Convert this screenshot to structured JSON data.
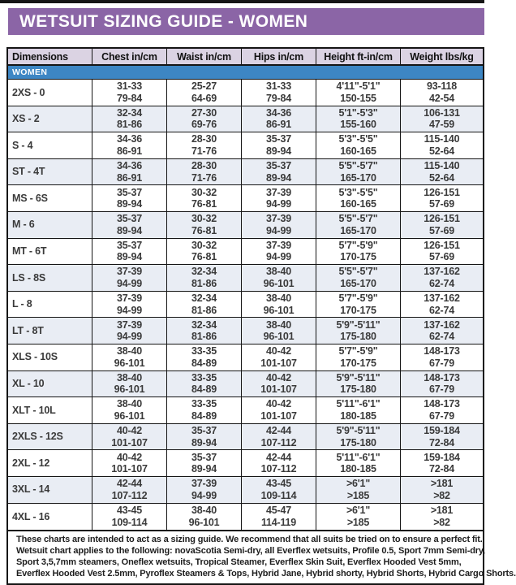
{
  "title": "WETSUIT SIZING GUIDE - WOMEN",
  "colors": {
    "purple": "#8b65a6",
    "lavender": "#dbd3e3",
    "blue": "#3d86c4",
    "row_alt": "#e9edf4",
    "border": "#151515"
  },
  "table": {
    "section_label": "WOMEN",
    "columns": [
      "Dimensions",
      "Chest in/cm",
      "Waist in/cm",
      "Hips in/cm",
      "Height ft-in/cm",
      "Weight lbs/kg"
    ],
    "rows": [
      {
        "size": "2XS - 0",
        "chest": [
          "31-33",
          "79-84"
        ],
        "waist": [
          "25-27",
          "64-69"
        ],
        "hips": [
          "31-33",
          "79-84"
        ],
        "height": [
          "4'11\"-5'1\"",
          "150-155"
        ],
        "weight": [
          "93-118",
          "42-54"
        ]
      },
      {
        "size": "XS - 2",
        "chest": [
          "32-34",
          "81-86"
        ],
        "waist": [
          "27-30",
          "69-76"
        ],
        "hips": [
          "34-36",
          "86-91"
        ],
        "height": [
          "5'1\"-5'3\"",
          "155-160"
        ],
        "weight": [
          "106-131",
          "47-59"
        ]
      },
      {
        "size": "S - 4",
        "chest": [
          "34-36",
          "86-91"
        ],
        "waist": [
          "28-30",
          "71-76"
        ],
        "hips": [
          "35-37",
          "89-94"
        ],
        "height": [
          "5'3\"-5'5\"",
          "160-165"
        ],
        "weight": [
          "115-140",
          "52-64"
        ]
      },
      {
        "size": "ST - 4T",
        "chest": [
          "34-36",
          "86-91"
        ],
        "waist": [
          "28-30",
          "71-76"
        ],
        "hips": [
          "35-37",
          "89-94"
        ],
        "height": [
          "5'5\"-5'7\"",
          "165-170"
        ],
        "weight": [
          "115-140",
          "52-64"
        ]
      },
      {
        "size": "MS - 6S",
        "chest": [
          "35-37",
          "89-94"
        ],
        "waist": [
          "30-32",
          "76-81"
        ],
        "hips": [
          "37-39",
          "94-99"
        ],
        "height": [
          "5'3\"-5'5\"",
          "160-165"
        ],
        "weight": [
          "126-151",
          "57-69"
        ]
      },
      {
        "size": "M - 6",
        "chest": [
          "35-37",
          "89-94"
        ],
        "waist": [
          "30-32",
          "76-81"
        ],
        "hips": [
          "37-39",
          "94-99"
        ],
        "height": [
          "5'5\"-5'7\"",
          "165-170"
        ],
        "weight": [
          "126-151",
          "57-69"
        ]
      },
      {
        "size": "MT - 6T",
        "chest": [
          "35-37",
          "89-94"
        ],
        "waist": [
          "30-32",
          "76-81"
        ],
        "hips": [
          "37-39",
          "94-99"
        ],
        "height": [
          "5'7\"-5'9\"",
          "170-175"
        ],
        "weight": [
          "126-151",
          "57-69"
        ]
      },
      {
        "size": "LS - 8S",
        "chest": [
          "37-39",
          "94-99"
        ],
        "waist": [
          "32-34",
          "81-86"
        ],
        "hips": [
          "38-40",
          "96-101"
        ],
        "height": [
          "5'5\"-5'7\"",
          "165-170"
        ],
        "weight": [
          "137-162",
          "62-74"
        ]
      },
      {
        "size": "L - 8",
        "chest": [
          "37-39",
          "94-99"
        ],
        "waist": [
          "32-34",
          "81-86"
        ],
        "hips": [
          "38-40",
          "96-101"
        ],
        "height": [
          "5'7\"-5'9\"",
          "170-175"
        ],
        "weight": [
          "137-162",
          "62-74"
        ]
      },
      {
        "size": "LT - 8T",
        "chest": [
          "37-39",
          "94-99"
        ],
        "waist": [
          "32-34",
          "81-86"
        ],
        "hips": [
          "38-40",
          "96-101"
        ],
        "height": [
          "5'9\"-5'11\"",
          "175-180"
        ],
        "weight": [
          "137-162",
          "62-74"
        ]
      },
      {
        "size": "XLS - 10S",
        "chest": [
          "38-40",
          "96-101"
        ],
        "waist": [
          "33-35",
          "84-89"
        ],
        "hips": [
          "40-42",
          "101-107"
        ],
        "height": [
          "5'7\"-5'9\"",
          "170-175"
        ],
        "weight": [
          "148-173",
          "67-79"
        ]
      },
      {
        "size": "XL - 10",
        "chest": [
          "38-40",
          "96-101"
        ],
        "waist": [
          "33-35",
          "84-89"
        ],
        "hips": [
          "40-42",
          "101-107"
        ],
        "height": [
          "5'9\"-5'11\"",
          "175-180"
        ],
        "weight": [
          "148-173",
          "67-79"
        ]
      },
      {
        "size": "XLT - 10L",
        "chest": [
          "38-40",
          "96-101"
        ],
        "waist": [
          "33-35",
          "84-89"
        ],
        "hips": [
          "40-42",
          "101-107"
        ],
        "height": [
          "5'11\"-6'1\"",
          "180-185"
        ],
        "weight": [
          "148-173",
          "67-79"
        ]
      },
      {
        "size": "2XLS - 12S",
        "chest": [
          "40-42",
          "101-107"
        ],
        "waist": [
          "35-37",
          "89-94"
        ],
        "hips": [
          "42-44",
          "107-112"
        ],
        "height": [
          "5'9\"-5'11\"",
          "175-180"
        ],
        "weight": [
          "159-184",
          "72-84"
        ]
      },
      {
        "size": "2XL - 12",
        "chest": [
          "40-42",
          "101-107"
        ],
        "waist": [
          "35-37",
          "89-94"
        ],
        "hips": [
          "42-44",
          "107-112"
        ],
        "height": [
          "5'11\"-6'1\"",
          "180-185"
        ],
        "weight": [
          "159-184",
          "72-84"
        ]
      },
      {
        "size": "3XL - 14",
        "chest": [
          "42-44",
          "107-112"
        ],
        "waist": [
          "37-39",
          "94-99"
        ],
        "hips": [
          "43-45",
          "109-114"
        ],
        "height": [
          ">6'1\"",
          ">185"
        ],
        "weight": [
          ">181",
          ">82"
        ]
      },
      {
        "size": "4XL - 16",
        "chest": [
          "43-45",
          "109-114"
        ],
        "waist": [
          "38-40",
          "96-101"
        ],
        "hips": [
          "45-47",
          "114-119"
        ],
        "height": [
          ">6'1\"",
          ">185"
        ],
        "weight": [
          ">181",
          ">82"
        ]
      }
    ]
  },
  "footnote": {
    "lines": [
      "These charts are intended to act as a sizing guide. We recommend that all suits be tried on to ensure a perfect fit.",
      "Wetsuit chart applies to the following: novaScotia Semi-dry, all Everflex wetsuits, Profile 0.5, Sport 7mm Semi-dry,",
      "Sport 3,5,7mm steamers, Oneflex wetsuits, Tropical Steamer, Everflex Skin Suit, Everflex Hooded Vest 5mm,",
      "Everflex Hooded Vest 2.5mm, Pyroflex Steamers & Tops, Hybrid Jane, Hybrid shorty, Hybrid Shorts, Hybrid Cargo Shorts."
    ]
  }
}
